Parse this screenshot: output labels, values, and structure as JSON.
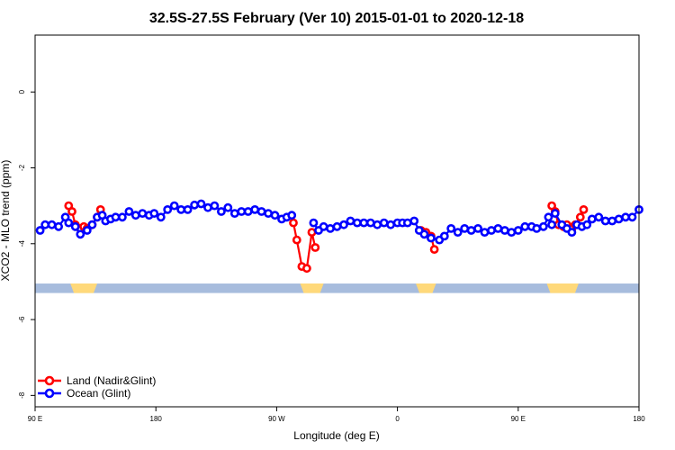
{
  "chart_data": {
    "type": "line",
    "title": "32.5S-27.5S February (Ver 10)   2015-01-01 to 2020-12-18",
    "xlabel": "Longitude (deg E)",
    "ylabel": "XCO2 - MLO trend (ppm)",
    "xlim": [
      90,
      450
    ],
    "ylim": [
      -8.3,
      1.5
    ],
    "x_ticks": [
      {
        "value": 90,
        "label": "90 E"
      },
      {
        "value": 162,
        "label": "180"
      },
      {
        "value": 234,
        "label": "90 W"
      },
      {
        "value": 306,
        "label": "0"
      },
      {
        "value": 378,
        "label": "90 E"
      },
      {
        "value": 450,
        "label": "180"
      }
    ],
    "y_ticks": [
      {
        "value": 0,
        "label": "0"
      },
      {
        "value": -2,
        "label": "-2"
      },
      {
        "value": -4,
        "label": "-4"
      },
      {
        "value": -6,
        "label": "-6"
      },
      {
        "value": -8,
        "label": "-8"
      }
    ],
    "legend_position": "bottom-left",
    "surface_band": {
      "ymin": -5.3,
      "ymax": -5.05,
      "ocean_color": "#a7bcdd",
      "land_color": "#ffd97a",
      "land_ranges": [
        [
          111,
          127
        ],
        [
          248,
          262
        ],
        [
          317,
          329
        ],
        [
          395,
          414
        ]
      ]
    },
    "series": [
      {
        "name": "Land (Nadir&Glint)",
        "color": "#ff0000",
        "segments": [
          {
            "x": [
              110,
              112,
              114,
              117,
              119,
              121,
              124,
              127,
              129
            ],
            "y": [
              -3.0,
              -3.15,
              -3.5,
              -3.6,
              -3.55,
              -3.6,
              -3.5,
              -3.3,
              -3.1
            ]
          },
          {
            "x": [
              244,
              246,
              249,
              252,
              255,
              257
            ],
            "y": [
              -3.45,
              -3.9,
              -4.6,
              -4.65,
              -3.7,
              -4.1
            ]
          },
          {
            "x": [
              320,
              323,
              326,
              328
            ],
            "y": [
              -3.65,
              -3.7,
              -3.8,
              -4.15
            ]
          },
          {
            "x": [
              398,
              400,
              402,
              405,
              407,
              410,
              412,
              415,
              417
            ],
            "y": [
              -3.0,
              -3.15,
              -3.5,
              -3.55,
              -3.5,
              -3.6,
              -3.5,
              -3.3,
              -3.1
            ]
          }
        ]
      },
      {
        "name": "Ocean (Glint)",
        "color": "#0000ff",
        "segments": [
          {
            "x": [
              93,
              96,
              100,
              104,
              108,
              110,
              114,
              117,
              121,
              124,
              127,
              130,
              132,
              135,
              138,
              142,
              146,
              150,
              154,
              158,
              161,
              165,
              169,
              173,
              177,
              181,
              185,
              189,
              193,
              197,
              201,
              205,
              209,
              213,
              217,
              221,
              225,
              229,
              233,
              237,
              240,
              243
            ],
            "y": [
              -3.65,
              -3.5,
              -3.5,
              -3.55,
              -3.3,
              -3.45,
              -3.55,
              -3.75,
              -3.65,
              -3.5,
              -3.3,
              -3.25,
              -3.4,
              -3.35,
              -3.3,
              -3.3,
              -3.15,
              -3.25,
              -3.2,
              -3.25,
              -3.2,
              -3.3,
              -3.1,
              -3.0,
              -3.1,
              -3.1,
              -2.98,
              -2.95,
              -3.05,
              -3.0,
              -3.15,
              -3.05,
              -3.2,
              -3.15,
              -3.15,
              -3.1,
              -3.15,
              -3.2,
              -3.25,
              -3.35,
              -3.3,
              -3.25
            ]
          },
          {
            "x": [
              256,
              259,
              262,
              266,
              270,
              274,
              278,
              282,
              286,
              290,
              294,
              298,
              302,
              306,
              309,
              312,
              316,
              319,
              322,
              326,
              331,
              334,
              338,
              342,
              346,
              350,
              354,
              358,
              362,
              366,
              370,
              374,
              378,
              382,
              386,
              389,
              393,
              396,
              398
            ],
            "y": [
              -3.45,
              -3.65,
              -3.55,
              -3.6,
              -3.55,
              -3.5,
              -3.4,
              -3.45,
              -3.45,
              -3.45,
              -3.5,
              -3.45,
              -3.5,
              -3.45,
              -3.45,
              -3.45,
              -3.4,
              -3.65,
              -3.75,
              -3.85,
              -3.9,
              -3.8,
              -3.6,
              -3.7,
              -3.6,
              -3.65,
              -3.6,
              -3.7,
              -3.65,
              -3.6,
              -3.65,
              -3.7,
              -3.65,
              -3.55,
              -3.55,
              -3.6,
              -3.55,
              -3.3,
              -3.5
            ]
          },
          {
            "x": [
              400,
              404,
              407,
              410,
              413,
              416,
              419,
              422,
              426,
              430,
              434,
              438,
              442,
              446,
              450
            ],
            "y": [
              -3.2,
              -3.5,
              -3.6,
              -3.7,
              -3.5,
              -3.55,
              -3.5,
              -3.35,
              -3.3,
              -3.4,
              -3.4,
              -3.35,
              -3.3,
              -3.3,
              -3.1
            ]
          }
        ]
      }
    ]
  }
}
